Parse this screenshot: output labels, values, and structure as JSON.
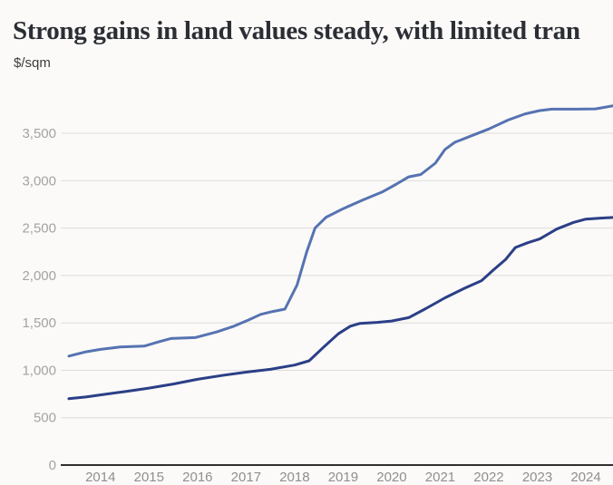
{
  "chart_data": {
    "type": "line",
    "title": "Strong gains in land values steady, with limited tran",
    "ylabel": "$/sqm",
    "xlabel": "",
    "grid": "horizontal",
    "legend": "none",
    "x_range": [
      2013.35,
      2024.56
    ],
    "y_range": [
      0,
      3950
    ],
    "x_ticks": [
      "2014",
      "2015",
      "2016",
      "2017",
      "2018",
      "2019",
      "2020",
      "2021",
      "2022",
      "2023",
      "2024"
    ],
    "x_tick_values": [
      2014,
      2015,
      2016,
      2017,
      2018,
      2019,
      2020,
      2021,
      2022,
      2023,
      2024
    ],
    "y_tick_values": [
      0,
      500,
      1000,
      1500,
      2000,
      2500,
      3000,
      3500
    ],
    "y_tick_labels": [
      "0",
      "500",
      "1,000",
      "1,500",
      "2,000",
      "2,500",
      "3,000",
      "3,500"
    ],
    "axis_color": "#2f2f2f",
    "gridline_color": "#dcdcda",
    "series": [
      {
        "name": "series_1",
        "color": "#5673b1",
        "points": [
          [
            2013.35,
            1150
          ],
          [
            2013.7,
            1195
          ],
          [
            2014.0,
            1220
          ],
          [
            2014.4,
            1245
          ],
          [
            2014.9,
            1255
          ],
          [
            2015.2,
            1300
          ],
          [
            2015.45,
            1335
          ],
          [
            2015.95,
            1345
          ],
          [
            2016.4,
            1405
          ],
          [
            2016.75,
            1465
          ],
          [
            2017.05,
            1530
          ],
          [
            2017.3,
            1590
          ],
          [
            2017.55,
            1620
          ],
          [
            2017.8,
            1645
          ],
          [
            2018.05,
            1900
          ],
          [
            2018.25,
            2250
          ],
          [
            2018.42,
            2500
          ],
          [
            2018.65,
            2615
          ],
          [
            2019.0,
            2705
          ],
          [
            2019.4,
            2795
          ],
          [
            2019.8,
            2880
          ],
          [
            2020.1,
            2965
          ],
          [
            2020.35,
            3040
          ],
          [
            2020.6,
            3065
          ],
          [
            2020.9,
            3185
          ],
          [
            2021.1,
            3330
          ],
          [
            2021.3,
            3405
          ],
          [
            2021.6,
            3465
          ],
          [
            2022.0,
            3545
          ],
          [
            2022.4,
            3640
          ],
          [
            2022.75,
            3705
          ],
          [
            2023.05,
            3740
          ],
          [
            2023.3,
            3755
          ],
          [
            2023.8,
            3755
          ],
          [
            2024.2,
            3758
          ],
          [
            2024.56,
            3790
          ]
        ]
      },
      {
        "name": "series_2",
        "color": "#2b3f87",
        "points": [
          [
            2013.35,
            700
          ],
          [
            2013.7,
            718
          ],
          [
            2014.0,
            740
          ],
          [
            2014.5,
            775
          ],
          [
            2015.0,
            812
          ],
          [
            2015.5,
            855
          ],
          [
            2016.0,
            905
          ],
          [
            2016.5,
            945
          ],
          [
            2017.0,
            980
          ],
          [
            2017.5,
            1010
          ],
          [
            2018.0,
            1055
          ],
          [
            2018.3,
            1100
          ],
          [
            2018.6,
            1245
          ],
          [
            2018.9,
            1385
          ],
          [
            2019.15,
            1465
          ],
          [
            2019.35,
            1495
          ],
          [
            2019.7,
            1505
          ],
          [
            2020.0,
            1520
          ],
          [
            2020.35,
            1555
          ],
          [
            2020.7,
            1650
          ],
          [
            2021.1,
            1765
          ],
          [
            2021.5,
            1865
          ],
          [
            2021.85,
            1945
          ],
          [
            2022.1,
            2060
          ],
          [
            2022.35,
            2170
          ],
          [
            2022.55,
            2295
          ],
          [
            2022.8,
            2345
          ],
          [
            2023.05,
            2385
          ],
          [
            2023.4,
            2490
          ],
          [
            2023.75,
            2560
          ],
          [
            2024.0,
            2595
          ],
          [
            2024.3,
            2605
          ],
          [
            2024.56,
            2612
          ]
        ]
      }
    ]
  }
}
